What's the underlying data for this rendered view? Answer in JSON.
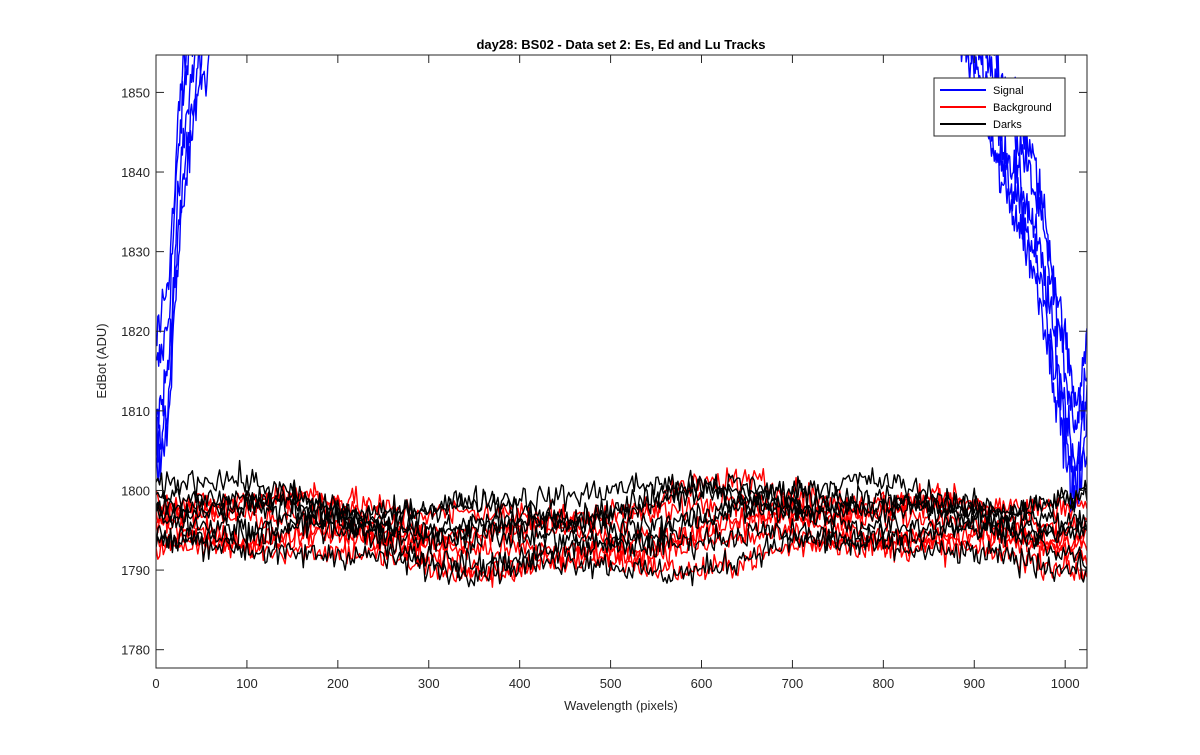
{
  "chart_data": {
    "type": "line",
    "title": "day28: BS02 - Data set 2: Es, Ed and Lu Tracks",
    "xlabel": "Wavelength (pixels)",
    "ylabel": "EdBot (ADU)",
    "xlim": [
      0,
      1024
    ],
    "ylim": [
      1777.7,
      1854.7
    ],
    "xticks": [
      0,
      100,
      200,
      300,
      400,
      500,
      600,
      700,
      800,
      900,
      1000
    ],
    "yticks": [
      1780,
      1790,
      1800,
      1810,
      1820,
      1830,
      1840,
      1850
    ],
    "grid": false,
    "legend_position": "top-right",
    "series": [
      {
        "name": "Signal",
        "color": "#0000ff",
        "count": 5,
        "left_shape": [
          [
            0,
            1815
          ],
          [
            8,
            1818
          ],
          [
            14,
            1822
          ],
          [
            18,
            1830
          ],
          [
            22,
            1838
          ],
          [
            27,
            1846
          ],
          [
            32,
            1851
          ],
          [
            38,
            1857
          ],
          [
            45,
            1862
          ],
          [
            55,
            1866
          ]
        ],
        "right_shape": [
          [
            890,
            1866
          ],
          [
            900,
            1863
          ],
          [
            910,
            1858
          ],
          [
            920,
            1853
          ],
          [
            930,
            1849
          ],
          [
            945,
            1845
          ],
          [
            955,
            1842
          ],
          [
            965,
            1838
          ],
          [
            975,
            1833
          ],
          [
            985,
            1826
          ],
          [
            995,
            1819
          ],
          [
            1005,
            1812
          ],
          [
            1012,
            1808
          ],
          [
            1018,
            1812
          ],
          [
            1024,
            1816
          ]
        ],
        "offsets": [
          0,
          -6,
          -10,
          4,
          -13
        ]
      },
      {
        "name": "Background",
        "color": "#ff0000",
        "count": 6,
        "levels": [
          1791.5,
          1793,
          1794,
          1795.5,
          1797,
          1798.5
        ],
        "noise": 1.6
      },
      {
        "name": "Darks",
        "color": "#000000",
        "count": 7,
        "levels": [
          1791.5,
          1793.5,
          1795.5,
          1796.5,
          1797.5,
          1798.5,
          1799.5
        ],
        "noise": 1.6
      }
    ]
  }
}
